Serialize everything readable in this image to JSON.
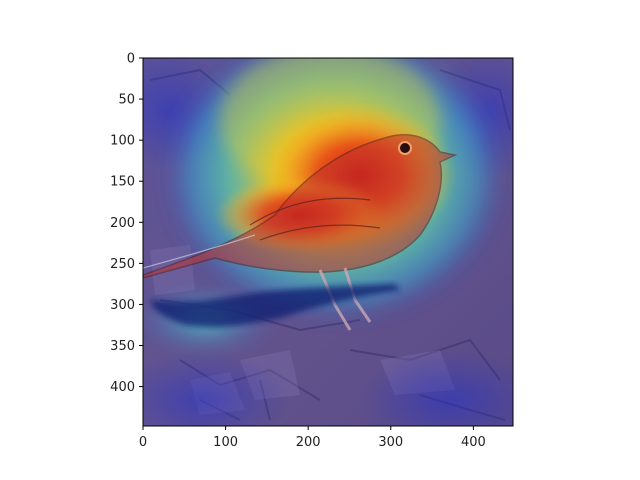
{
  "figure": {
    "type": "image-heatmap-overlay",
    "subject": "bird (sparrow) on rocks",
    "colormap": "jet",
    "overlay_alpha": 0.5
  },
  "axes": {
    "x": {
      "ticks": [
        "0",
        "100",
        "200",
        "300",
        "400"
      ],
      "range": [
        0,
        448
      ]
    },
    "y": {
      "ticks": [
        "0",
        "50",
        "100",
        "150",
        "200",
        "250",
        "300",
        "350",
        "400"
      ],
      "range": [
        0,
        448
      ]
    }
  },
  "colors": {
    "hot": "#d61f1f",
    "warm": "#f7c21d",
    "mid": "#35d6c7",
    "cool": "#3b3ec9",
    "rock": "#7d6478"
  }
}
